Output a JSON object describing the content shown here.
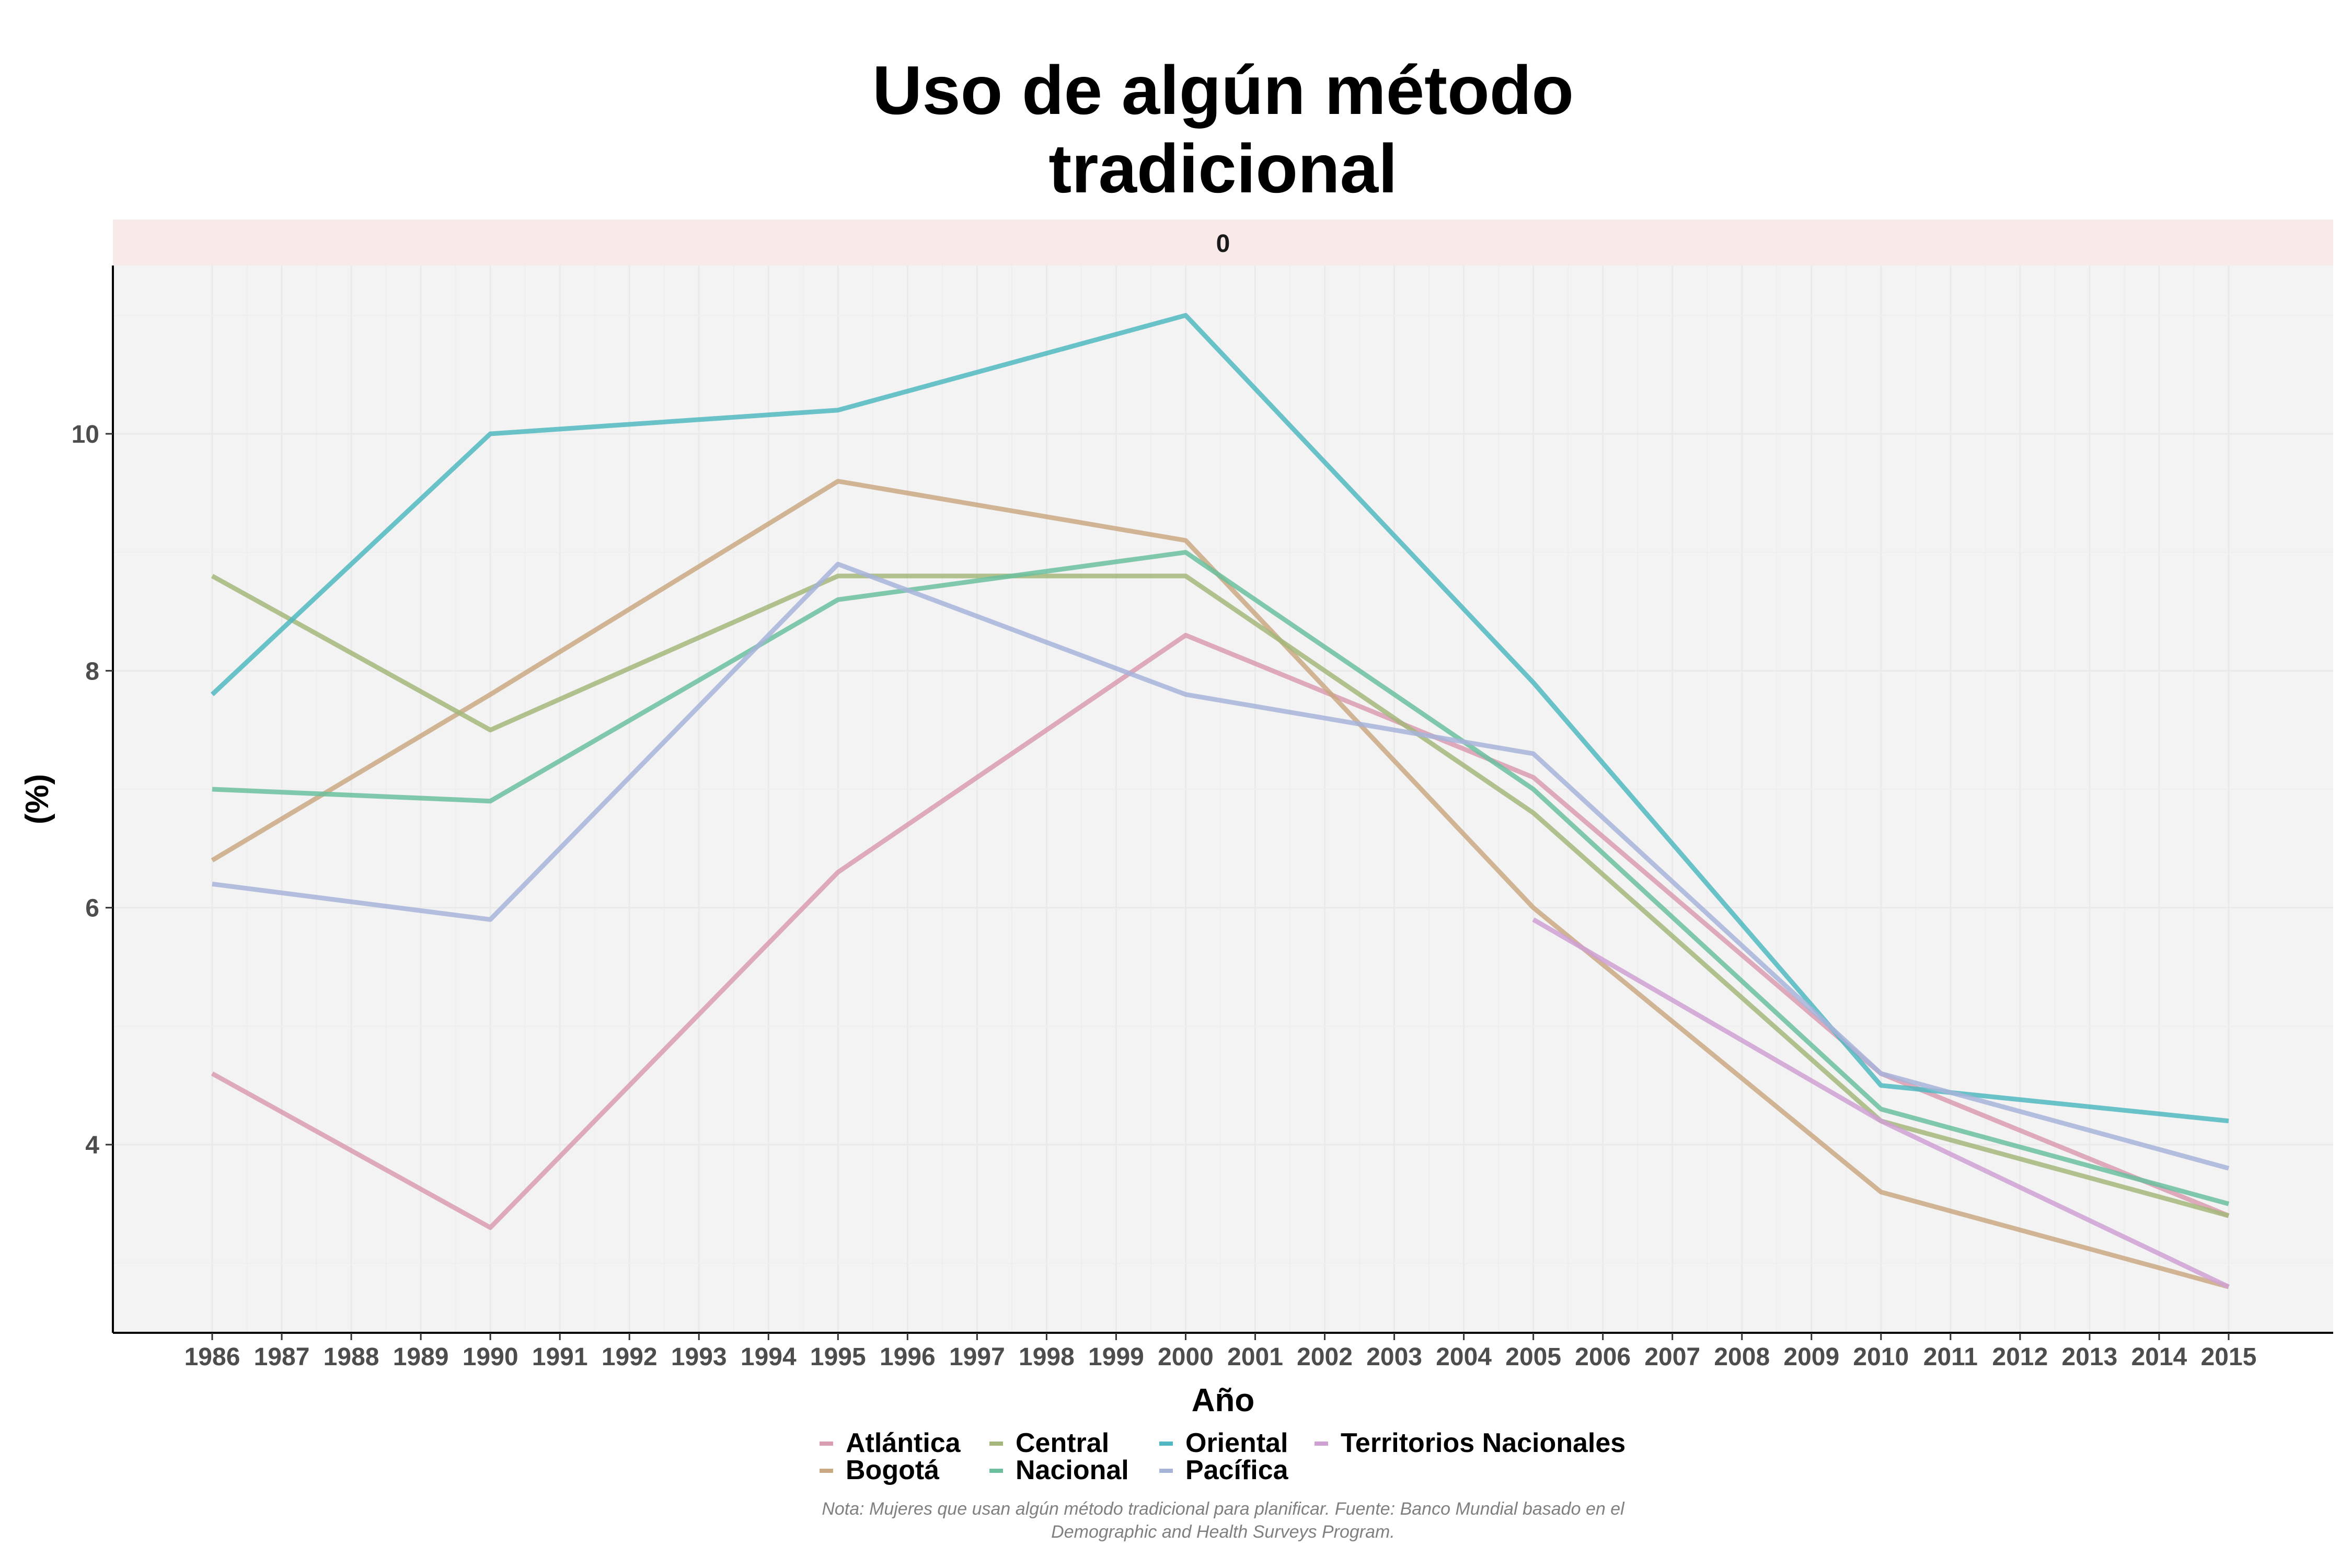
{
  "chart_data": {
    "type": "line",
    "title_lines": [
      "Uso de algún método",
      "tradicional"
    ],
    "facet_label": "0",
    "xlabel": "Año",
    "ylabel": "(%)",
    "x": [
      1986,
      1987,
      1988,
      1989,
      1990,
      1991,
      1992,
      1993,
      1994,
      1995,
      1996,
      1997,
      1998,
      1999,
      2000,
      2001,
      2002,
      2003,
      2004,
      2005,
      2006,
      2007,
      2008,
      2009,
      2010,
      2011,
      2012,
      2013,
      2014,
      2015
    ],
    "xlim": [
      1986,
      2015
    ],
    "ylim": [
      2.4,
      11.4
    ],
    "yticks": [
      4,
      6,
      8,
      10
    ],
    "grid": true,
    "legend_position": "bottom",
    "caption_lines": [
      "Nota: Mujeres que usan algún método tradicional para planificar. Fuente: Banco Mundial basado en el",
      "Demographic and Health Surveys Program."
    ],
    "series": [
      {
        "name": "Atlántica",
        "color": "#D99CB0",
        "points": [
          [
            1986,
            4.6
          ],
          [
            1990,
            3.3
          ],
          [
            1995,
            6.3
          ],
          [
            2000,
            8.3
          ],
          [
            2005,
            7.1
          ],
          [
            2010,
            4.6
          ],
          [
            2015,
            3.4
          ]
        ]
      },
      {
        "name": "Bogotá",
        "color": "#C9A882",
        "points": [
          [
            1986,
            6.4
          ],
          [
            1990,
            7.8
          ],
          [
            1995,
            9.6
          ],
          [
            2000,
            9.1
          ],
          [
            2005,
            6.0
          ],
          [
            2010,
            3.6
          ],
          [
            2015,
            2.8
          ]
        ]
      },
      {
        "name": "Central",
        "color": "#A5B77A",
        "points": [
          [
            1986,
            8.8
          ],
          [
            1990,
            7.5
          ],
          [
            1995,
            8.8
          ],
          [
            2000,
            8.8
          ],
          [
            2005,
            6.8
          ],
          [
            2010,
            4.2
          ],
          [
            2015,
            3.4
          ]
        ]
      },
      {
        "name": "Nacional",
        "color": "#6BBF9D",
        "points": [
          [
            1986,
            7.0
          ],
          [
            1990,
            6.9
          ],
          [
            1995,
            8.6
          ],
          [
            2000,
            9.0
          ],
          [
            2005,
            7.0
          ],
          [
            2010,
            4.3
          ],
          [
            2015,
            3.5
          ]
        ]
      },
      {
        "name": "Oriental",
        "color": "#4FB8C0",
        "points": [
          [
            1986,
            7.8
          ],
          [
            1990,
            10.0
          ],
          [
            1995,
            10.2
          ],
          [
            2000,
            11.0
          ],
          [
            2005,
            7.9
          ],
          [
            2010,
            4.5
          ],
          [
            2015,
            4.2
          ]
        ]
      },
      {
        "name": "Pacífica",
        "color": "#A7B3D9",
        "points": [
          [
            1986,
            6.2
          ],
          [
            1990,
            5.9
          ],
          [
            1995,
            8.9
          ],
          [
            2000,
            7.8
          ],
          [
            2005,
            7.3
          ],
          [
            2010,
            4.6
          ],
          [
            2015,
            3.8
          ]
        ]
      },
      {
        "name": "Territorios Nacionales",
        "color": "#CFA0D3",
        "points": [
          [
            2005,
            5.9
          ],
          [
            2010,
            4.2
          ],
          [
            2015,
            2.8
          ]
        ]
      }
    ]
  }
}
